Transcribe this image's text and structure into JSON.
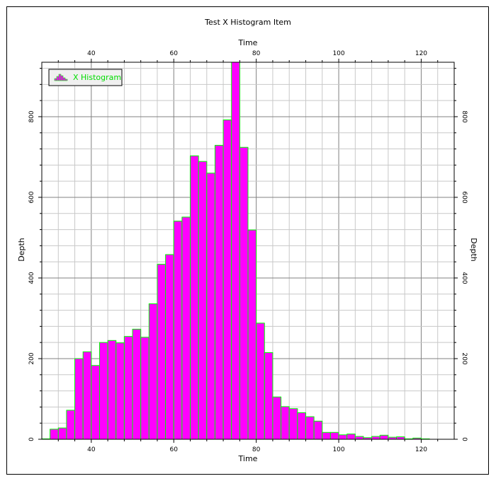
{
  "chart_data": {
    "type": "bar",
    "title": "Test X Histogram Item",
    "xlabel": "Time",
    "x2label": "Time",
    "ylabel": "Depth",
    "y2label": "Depth",
    "xlim": [
      28,
      128
    ],
    "ylim": [
      0,
      935
    ],
    "x_ticks": [
      40,
      60,
      80,
      100,
      120
    ],
    "y_ticks": [
      0,
      200,
      400,
      600,
      800
    ],
    "grid": true,
    "legend": {
      "position": "top-left",
      "label": "X Histogram"
    },
    "bin_width": 2,
    "bin_edges_start": 28,
    "series": [
      {
        "name": "X Histogram",
        "values": [
          1,
          25,
          28,
          72,
          200,
          217,
          183,
          240,
          245,
          239,
          255,
          273,
          253,
          336,
          434,
          458,
          541,
          551,
          703,
          689,
          660,
          729,
          792,
          935,
          724,
          519,
          288,
          215,
          105,
          81,
          76,
          66,
          56,
          45,
          17,
          17,
          11,
          13,
          7,
          4,
          7,
          10,
          5,
          6,
          1,
          3,
          1,
          0,
          0,
          0
        ]
      }
    ],
    "colors": {
      "fill": "#ff00ff",
      "outline": "#00ff00",
      "legend_text": "#00dd00"
    }
  }
}
